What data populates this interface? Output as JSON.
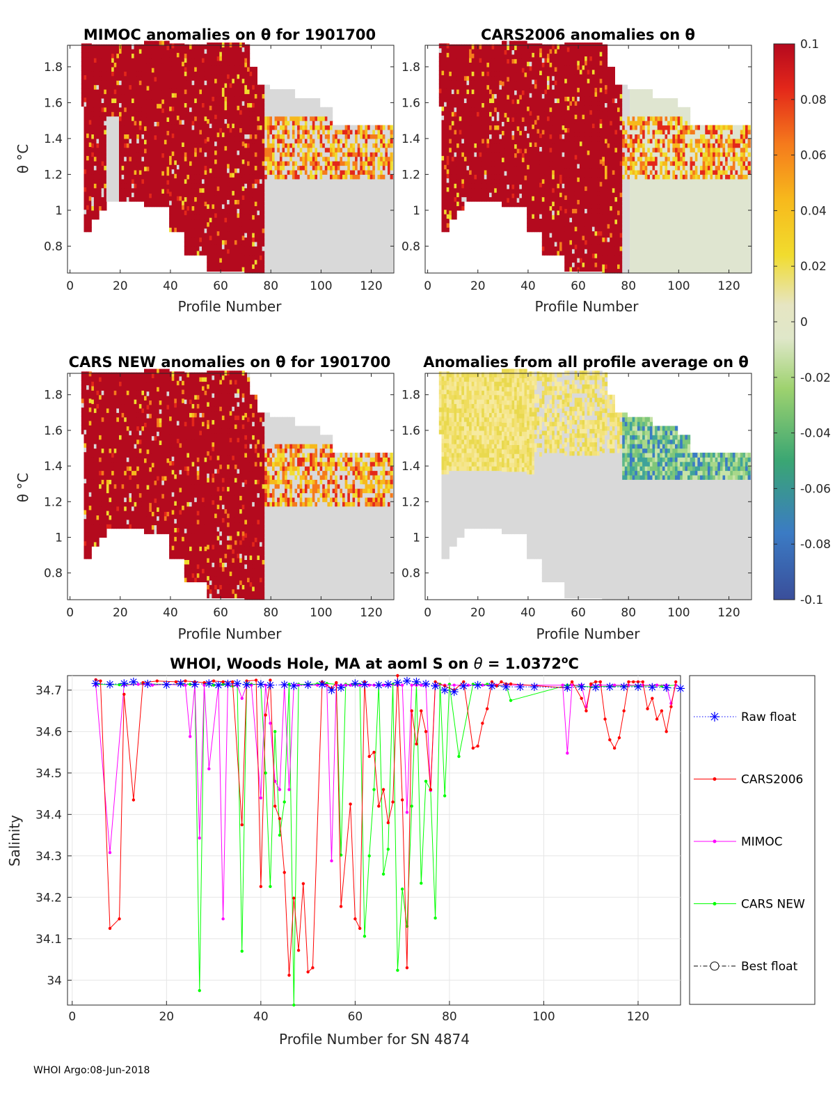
{
  "footer": "WHOI Argo:08-Jun-2018",
  "colorbar": {
    "ticks": [
      "0.1",
      "0.08",
      "0.06",
      "0.04",
      "0.02",
      "0",
      "-0.02",
      "-0.04",
      "-0.06",
      "-0.08",
      "-0.1"
    ],
    "min": -0.1,
    "max": 0.1
  },
  "panels": [
    {
      "title": "MIMOC anomalies on θ  for 1901700",
      "ylabel": "θ °C",
      "xlabel": "Profile Number",
      "style": "red"
    },
    {
      "title": "CARS2006 anomalies on θ",
      "ylabel": "",
      "xlabel": "Profile Number",
      "style": "red2"
    },
    {
      "title": "CARS NEW anomalies on θ for 1901700",
      "ylabel": "θ °C",
      "xlabel": "Profile Number",
      "style": "red3"
    },
    {
      "title": "Anomalies from all profile average on θ",
      "ylabel": "",
      "xlabel": "Profile Number",
      "style": "avg"
    }
  ],
  "heat_axes": {
    "xlim": [
      -1,
      129
    ],
    "ylim": [
      0.65,
      1.92
    ],
    "xticks": [
      0,
      20,
      40,
      60,
      80,
      100,
      120
    ],
    "yticks": [
      0.8,
      1,
      1.2,
      1.4,
      1.6,
      1.8
    ],
    "ytick_labels": [
      "0.8",
      "1",
      "1.2",
      "1.4",
      "1.6",
      "1.8"
    ]
  },
  "chart_data": {
    "type": "line",
    "title": "WHOI, Woods Hole, MA at aoml S on θ = 1.0372°C",
    "xlabel": "Profile Number for SN 4874",
    "ylabel": "Salinity",
    "xlim": [
      -1,
      129
    ],
    "ylim": [
      33.94,
      34.735
    ],
    "xticks": [
      0,
      20,
      40,
      60,
      80,
      100,
      120
    ],
    "yticks": [
      34.0,
      34.1,
      34.2,
      34.3,
      34.4,
      34.5,
      34.6,
      34.7
    ],
    "ytick_labels": [
      "34",
      "34.1",
      "34.2",
      "34.3",
      "34.4",
      "34.5",
      "34.6",
      "34.7"
    ],
    "legend": [
      "Raw float",
      "CARS2006",
      "MIMOC",
      "CARS NEW",
      "Best float"
    ],
    "series": [
      {
        "name": "Raw float",
        "color": "#0000ff",
        "marker": "asterisk",
        "line": "dotted",
        "x": [
          5,
          8,
          11,
          13,
          16,
          20,
          23,
          26,
          29,
          31,
          33,
          35,
          37,
          40,
          42,
          45,
          47,
          50,
          53,
          55,
          57,
          60,
          62,
          65,
          67,
          69,
          71,
          73,
          75,
          77,
          79,
          81,
          83,
          86,
          89,
          92,
          95,
          98,
          105,
          108,
          111,
          114,
          117,
          120,
          123,
          126,
          129
        ],
        "y": [
          34.716,
          34.714,
          34.716,
          34.72,
          34.715,
          34.713,
          34.716,
          34.714,
          34.716,
          34.712,
          34.715,
          34.716,
          34.713,
          34.714,
          34.712,
          34.713,
          34.71,
          34.713,
          34.714,
          34.7,
          34.706,
          34.716,
          34.714,
          34.712,
          34.714,
          34.718,
          34.722,
          34.72,
          34.715,
          34.71,
          34.7,
          34.696,
          34.71,
          34.712,
          34.71,
          34.708,
          34.708,
          34.708,
          34.706,
          34.708,
          34.707,
          34.708,
          34.708,
          34.708,
          34.707,
          34.706,
          34.704
        ]
      },
      {
        "name": "CARS2006",
        "color": "#ff0000",
        "marker": "dot",
        "line": "solid",
        "x": [
          5,
          6,
          8,
          10,
          11,
          13,
          15,
          18,
          22,
          24,
          26,
          28,
          30,
          32,
          34,
          36,
          37,
          39,
          40,
          41,
          42,
          43,
          44,
          45,
          46,
          47,
          48,
          49,
          50,
          51,
          53,
          55,
          56,
          57,
          59,
          60,
          61,
          62,
          63,
          64,
          65,
          66,
          67,
          68,
          69,
          70,
          71,
          72,
          73,
          74,
          75,
          76,
          77,
          79,
          81,
          83,
          85,
          86,
          87,
          88,
          89,
          90,
          91,
          92,
          93,
          105,
          106,
          108,
          109,
          110,
          111,
          112,
          113,
          114,
          115,
          116,
          117,
          118,
          119,
          120,
          121,
          122,
          123,
          124,
          125,
          126,
          127,
          128
        ],
        "y": [
          34.725,
          34.722,
          34.125,
          34.148,
          34.69,
          34.435,
          34.718,
          34.722,
          34.72,
          34.722,
          34.72,
          34.718,
          34.722,
          34.72,
          34.72,
          34.375,
          34.722,
          34.724,
          34.226,
          34.64,
          34.724,
          34.42,
          34.39,
          34.26,
          34.012,
          34.198,
          34.072,
          34.233,
          34.02,
          34.03,
          34.72,
          34.704,
          34.718,
          34.178,
          34.425,
          34.148,
          34.125,
          34.72,
          34.54,
          34.55,
          34.42,
          34.46,
          34.38,
          34.43,
          34.735,
          34.435,
          34.03,
          34.65,
          34.57,
          34.65,
          34.6,
          34.46,
          34.72,
          34.71,
          34.7,
          34.72,
          34.56,
          34.565,
          34.62,
          34.655,
          34.72,
          34.71,
          34.72,
          34.715,
          34.715,
          34.705,
          34.72,
          34.68,
          34.65,
          34.715,
          34.72,
          34.72,
          34.63,
          34.58,
          34.56,
          34.585,
          34.65,
          34.72,
          34.72,
          34.72,
          34.72,
          34.655,
          34.68,
          34.63,
          34.65,
          34.6,
          34.66,
          34.72
        ],
        "hidden_note": ""
      },
      {
        "name": "MIMOC",
        "color": "#ff00ff",
        "marker": "dot",
        "line": "solid",
        "x": [
          5,
          8,
          11,
          14,
          17,
          20,
          24,
          25,
          26,
          27,
          28,
          29,
          31,
          32,
          33,
          35,
          36,
          37,
          38,
          40,
          41,
          42,
          43,
          44,
          45,
          46,
          47,
          48,
          50,
          52,
          54,
          55,
          56,
          57,
          58,
          59,
          61,
          63,
          64,
          65,
          66,
          67,
          69,
          70,
          71,
          72,
          73,
          74,
          75,
          76,
          77,
          79,
          81,
          84,
          87,
          90,
          92,
          104,
          105,
          106,
          108,
          109,
          110,
          112,
          115,
          118,
          121,
          124,
          126,
          127,
          128
        ],
        "y": [
          34.712,
          34.308,
          34.712,
          34.714,
          34.712,
          34.714,
          34.712,
          34.588,
          34.712,
          34.343,
          34.712,
          34.51,
          34.712,
          34.148,
          34.712,
          34.712,
          34.68,
          34.712,
          34.712,
          34.44,
          34.712,
          34.62,
          34.48,
          34.46,
          34.712,
          34.46,
          34.712,
          34.712,
          34.712,
          34.712,
          34.712,
          34.288,
          34.712,
          34.712,
          34.712,
          34.712,
          34.712,
          34.712,
          34.712,
          34.712,
          34.712,
          34.712,
          34.712,
          34.712,
          34.405,
          34.712,
          34.712,
          34.712,
          34.712,
          34.458,
          34.712,
          34.712,
          34.712,
          34.712,
          34.712,
          34.712,
          34.712,
          34.712,
          34.548,
          34.712,
          34.712,
          34.66,
          34.712,
          34.712,
          34.712,
          34.712,
          34.712,
          34.712,
          34.712,
          34.668,
          34.712
        ]
      },
      {
        "name": "CARS NEW",
        "color": "#00ff00",
        "marker": "dot",
        "line": "solid",
        "x": [
          5,
          10,
          15,
          20,
          25,
          26,
          27,
          28,
          30,
          32,
          34,
          35,
          36,
          37,
          38,
          40,
          41,
          42,
          43,
          44,
          45,
          46,
          47,
          48,
          50,
          52,
          54,
          56,
          57,
          58,
          60,
          61,
          62,
          63,
          64,
          65,
          66,
          67,
          68,
          69,
          70,
          71,
          72,
          73,
          74,
          75,
          76,
          77,
          78,
          79,
          80,
          82,
          85,
          88,
          90,
          92,
          93,
          105,
          110,
          115,
          120,
          125,
          128
        ],
        "y": [
          34.714,
          34.713,
          34.715,
          34.714,
          34.714,
          34.712,
          33.975,
          34.714,
          34.712,
          34.714,
          34.71,
          34.714,
          34.07,
          34.715,
          34.714,
          34.714,
          34.5,
          34.226,
          34.6,
          34.35,
          34.43,
          34.714,
          33.94,
          34.714,
          34.714,
          34.715,
          34.716,
          34.714,
          34.302,
          34.714,
          34.714,
          34.714,
          34.106,
          34.3,
          34.46,
          34.714,
          34.256,
          34.316,
          34.714,
          34.024,
          34.22,
          34.13,
          34.42,
          34.714,
          34.234,
          34.48,
          34.46,
          34.15,
          34.714,
          34.445,
          34.714,
          34.54,
          34.714,
          34.714,
          34.71,
          34.712,
          34.675,
          34.712,
          34.708,
          34.71,
          34.71,
          34.71,
          34.712
        ]
      },
      {
        "name": "Best float",
        "color": "#000000",
        "marker": "circle",
        "line": "dashdot",
        "x": [],
        "y": []
      }
    ]
  }
}
